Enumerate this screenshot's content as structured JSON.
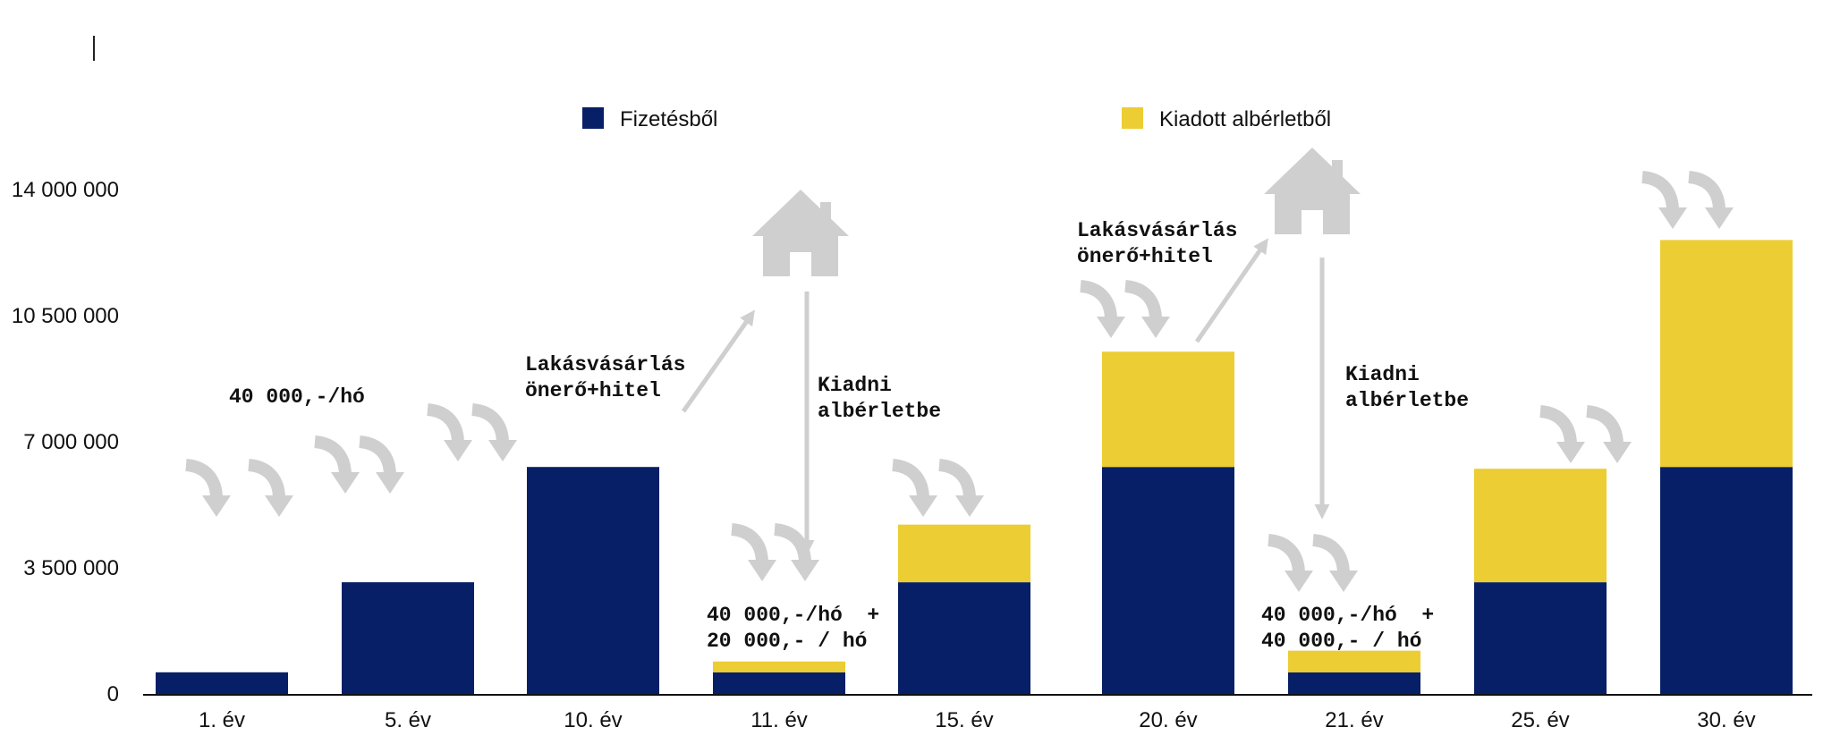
{
  "chart_data": {
    "type": "bar",
    "stacked": true,
    "title": "",
    "xlabel": "",
    "ylabel": "",
    "ylim": [
      0,
      14000000
    ],
    "ytick_values": [
      0,
      3500000,
      7000000,
      10500000,
      14000000
    ],
    "ytick_labels": [
      "0",
      "3 500 000",
      "7 000 000",
      "10 500 000",
      "14 000 000"
    ],
    "categories": [
      "1. év",
      "5. év",
      "10. év",
      "11. év",
      "15. év",
      "20. év",
      "21. év",
      "25. év",
      "30. év"
    ],
    "series": [
      {
        "name": "Fizetésből",
        "color": "#071f66",
        "values": [
          600000,
          3100000,
          6300000,
          600000,
          3100000,
          6300000,
          600000,
          3100000,
          6300000
        ]
      },
      {
        "name": "Kiadott albérletből",
        "color": "#eccd33",
        "values": [
          0,
          0,
          0,
          300000,
          1600000,
          3200000,
          600000,
          3150000,
          6300000
        ]
      }
    ],
    "legend": "top",
    "grid": false,
    "annotations": [
      {
        "id": "rate-1",
        "lines": [
          "40 000,-/hó"
        ]
      },
      {
        "id": "buy-1",
        "lines": [
          "Lakásvásárlás",
          "önerő+hitel"
        ]
      },
      {
        "id": "rent-1",
        "lines": [
          "Kiadni",
          "albérletbe"
        ]
      },
      {
        "id": "rate-2",
        "lines": [
          "40 000,-/hó  +",
          "20 000,- / hó"
        ]
      },
      {
        "id": "buy-2",
        "lines": [
          "Lakásvásárlás",
          "önerő+hitel"
        ]
      },
      {
        "id": "rent-2",
        "lines": [
          "Kiadni",
          "albérletbe"
        ]
      },
      {
        "id": "rate-3",
        "lines": [
          "40 000,-/hó  +",
          "40 000,- / hó"
        ]
      }
    ],
    "icons": [
      "house-icon",
      "curved-arrow-icon",
      "straight-arrow-icon"
    ],
    "icon_color": "#cfcfcf"
  }
}
